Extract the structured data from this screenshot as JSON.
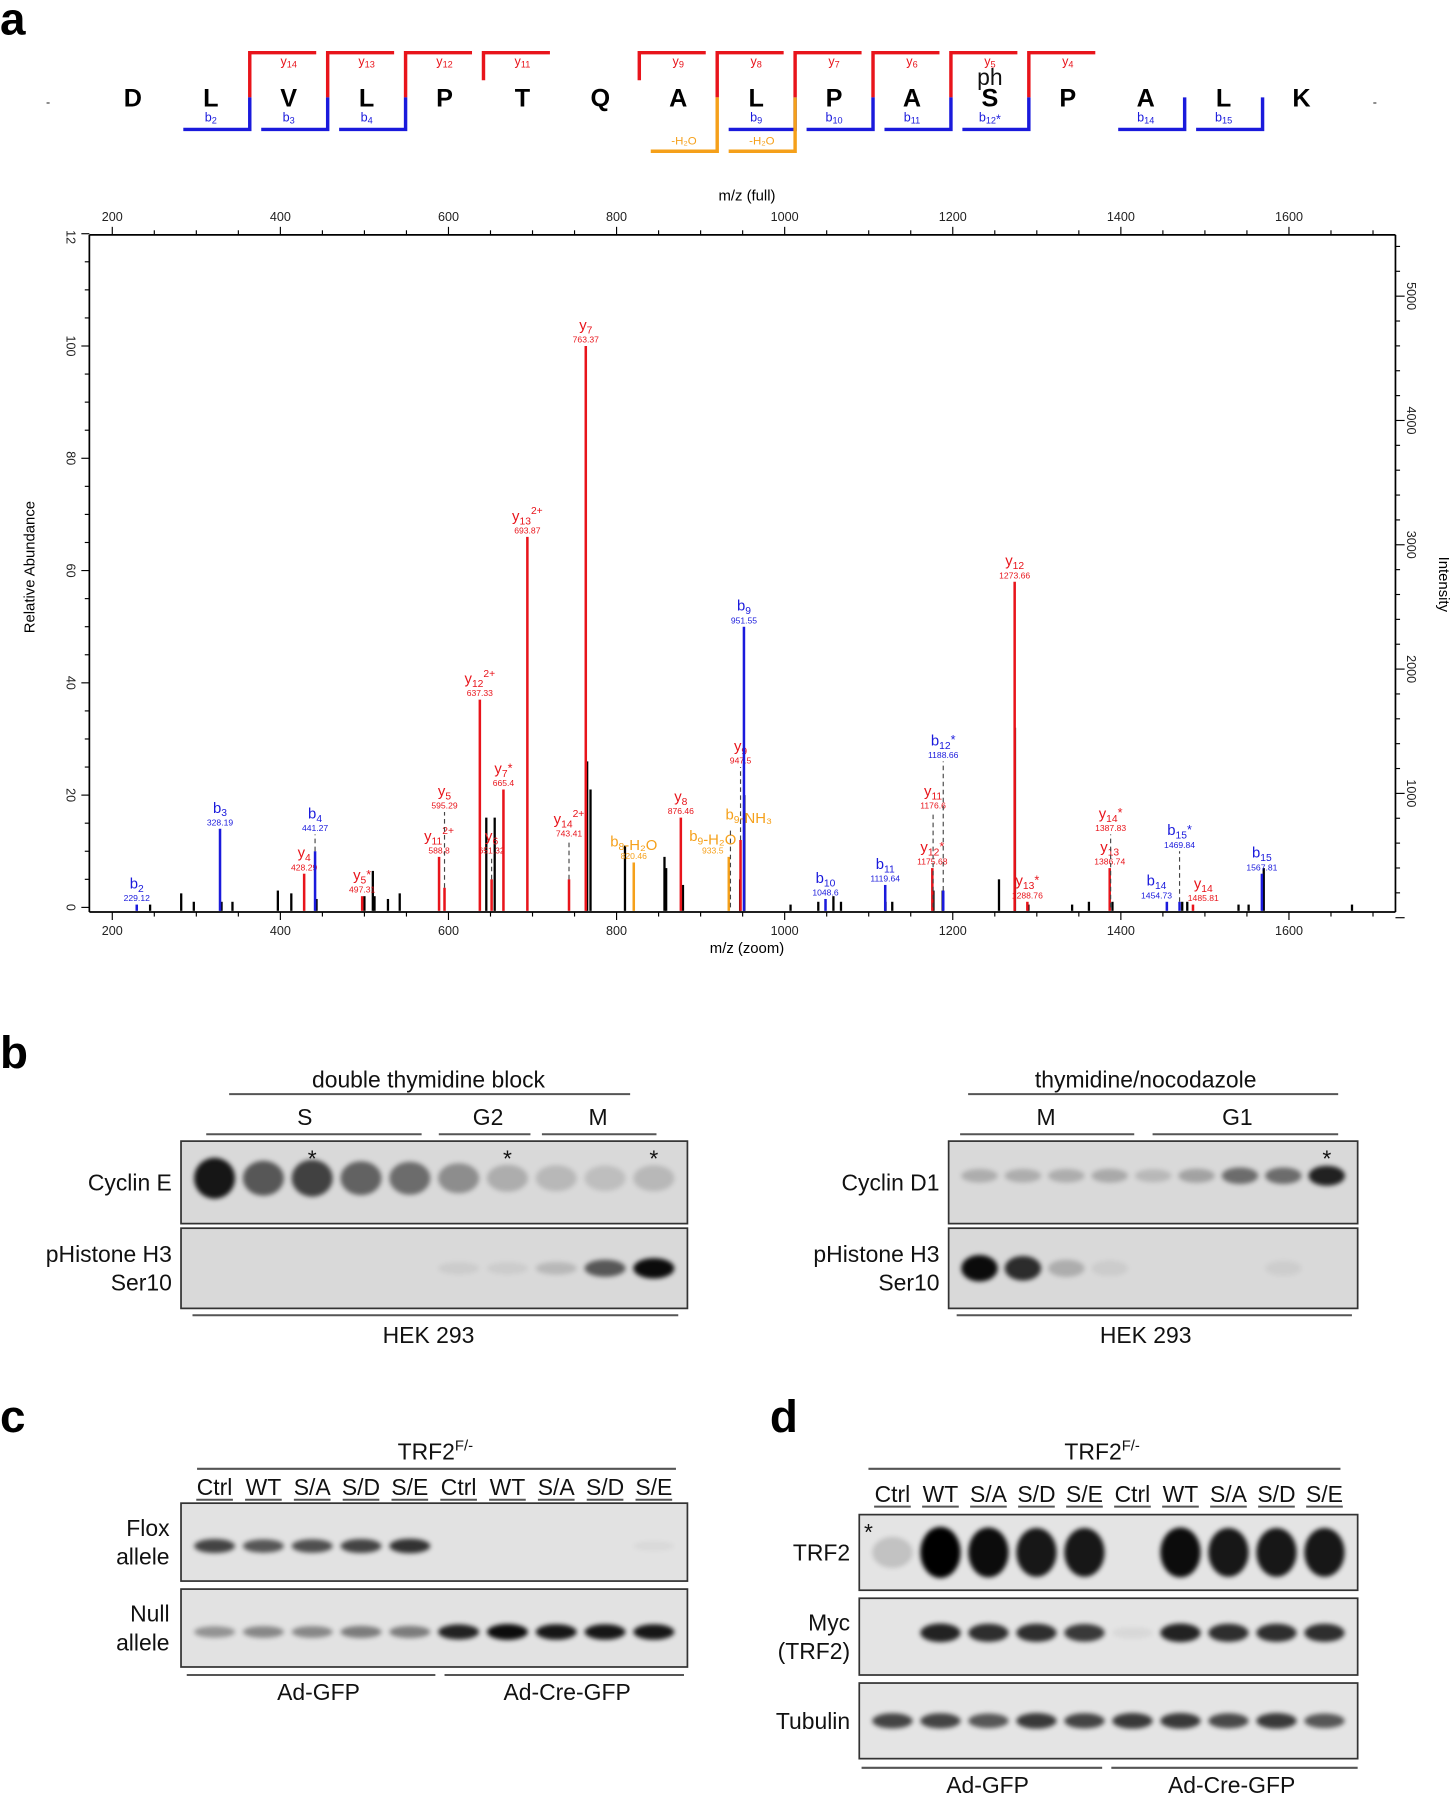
{
  "panels": {
    "a": "a",
    "b": "b",
    "c": "c",
    "d": "d"
  },
  "colors": {
    "y": "#e8141b",
    "b": "#1a1adc",
    "loss": "#f5a01a",
    "other": "#000000"
  },
  "sequence": {
    "residues": [
      "D",
      "L",
      "V",
      "L",
      "P",
      "T",
      "Q",
      "A",
      "L",
      "P",
      "A",
      "S",
      "P",
      "A",
      "L",
      "K"
    ],
    "terminal_marks": [
      "-",
      "-"
    ],
    "modification": {
      "residue_index": 11,
      "label": "ph"
    },
    "y_ions": [
      {
        "ion": "y",
        "n": "14",
        "after": 1
      },
      {
        "ion": "y",
        "n": "13",
        "after": 2
      },
      {
        "ion": "y",
        "n": "12",
        "after": 3
      },
      {
        "ion": "y",
        "n": "11",
        "after": 4
      },
      {
        "ion": "y",
        "n": "9",
        "after": 6
      },
      {
        "ion": "y",
        "n": "8",
        "after": 7
      },
      {
        "ion": "y",
        "n": "7",
        "after": 8
      },
      {
        "ion": "y",
        "n": "6",
        "after": 9
      },
      {
        "ion": "y",
        "n": "5",
        "after": 10
      },
      {
        "ion": "y",
        "n": "4",
        "after": 11
      }
    ],
    "b_ions": [
      {
        "ion": "b",
        "n": "2",
        "star": "",
        "after": 1
      },
      {
        "ion": "b",
        "n": "3",
        "star": "",
        "after": 2
      },
      {
        "ion": "b",
        "n": "4",
        "star": "",
        "after": 3
      },
      {
        "ion": "b",
        "n": "9",
        "star": "",
        "after": 8
      },
      {
        "ion": "b",
        "n": "10",
        "star": "",
        "after": 9
      },
      {
        "ion": "b",
        "n": "11",
        "star": "",
        "after": 10
      },
      {
        "ion": "b",
        "n": "12",
        "star": "*",
        "after": 11
      },
      {
        "ion": "b",
        "n": "14",
        "star": "",
        "after": 13
      },
      {
        "ion": "b",
        "n": "15",
        "star": "",
        "after": 14
      }
    ],
    "water_loss": [
      {
        "label": "-H₂O",
        "after": 7
      },
      {
        "label": "-H₂O",
        "after": 8
      }
    ]
  },
  "chart_data": {
    "type": "bar",
    "title": "",
    "xlabel": "m/z (zoom)",
    "xlabel_top": "m/z (full)",
    "ylabel": "Relative Abundance",
    "ylabel_right": "Intensity",
    "xlim": [
      172,
      1728
    ],
    "ylim": [
      0,
      120
    ],
    "x_ticks": [
      200,
      400,
      600,
      800,
      1000,
      1200,
      1400,
      1600
    ],
    "y_ticks": [
      0,
      20,
      40,
      60,
      80,
      100,
      "12"
    ],
    "y_right_ticks": [
      1000,
      2000,
      3000,
      4000,
      5000
    ],
    "labeled_peaks": [
      {
        "ion": "b",
        "n": "2",
        "sup": "",
        "star": "",
        "mz": "229.12",
        "x": 229.12,
        "rel": 0.5,
        "dash": 0,
        "type": "b"
      },
      {
        "ion": "b",
        "n": "3",
        "sup": "",
        "star": "",
        "mz": "328.19",
        "x": 328.19,
        "rel": 14,
        "dash": 0,
        "type": "b"
      },
      {
        "ion": "y",
        "n": "4",
        "sup": "",
        "star": "",
        "mz": "428.29",
        "x": 428.29,
        "rel": 6,
        "dash": 0,
        "type": "y"
      },
      {
        "ion": "b",
        "n": "4",
        "sup": "",
        "star": "",
        "mz": "441.27",
        "x": 441.27,
        "rel": 10,
        "dash": 13,
        "type": "b"
      },
      {
        "ion": "y",
        "n": "5",
        "sup": "",
        "star": "*",
        "mz": "497.31",
        "x": 497.31,
        "rel": 2,
        "dash": 0,
        "type": "y"
      },
      {
        "ion": "y",
        "n": "11",
        "sup": "2+",
        "star": "",
        "mz": "588.8",
        "x": 588.8,
        "rel": 9,
        "dash": 0,
        "type": "y"
      },
      {
        "ion": "y",
        "n": "5",
        "sup": "",
        "star": "",
        "mz": "595.29",
        "x": 595.29,
        "rel": 3.5,
        "dash": 17,
        "type": "y"
      },
      {
        "ion": "y",
        "n": "12",
        "sup": "2+",
        "star": "",
        "mz": "637.33",
        "x": 637.33,
        "rel": 37,
        "dash": 0,
        "type": "y"
      },
      {
        "ion": "y",
        "n": "6",
        "sup": "",
        "star": "",
        "mz": "651.32",
        "x": 651.32,
        "rel": 5,
        "dash": 9,
        "type": "y"
      },
      {
        "ion": "y",
        "n": "7",
        "sup": "",
        "star": "*",
        "mz": "665.4",
        "x": 665.4,
        "rel": 21,
        "dash": 0,
        "type": "y"
      },
      {
        "ion": "y",
        "n": "13",
        "sup": "2+",
        "star": "",
        "mz": "693.87",
        "x": 693.87,
        "rel": 66,
        "dash": 0,
        "type": "y"
      },
      {
        "ion": "y",
        "n": "14",
        "sup": "2+",
        "star": "",
        "mz": "743.41",
        "x": 743.41,
        "rel": 5,
        "dash": 12,
        "type": "y"
      },
      {
        "ion": "y",
        "n": "7",
        "sup": "",
        "star": "",
        "mz": "763.37",
        "x": 763.37,
        "rel": 100,
        "dash": 0,
        "type": "y"
      },
      {
        "ion": "b",
        "n": "8",
        "sup": "",
        "star": "",
        "suffix": "-H₂O",
        "mz": "820.46",
        "x": 820.46,
        "rel": 8,
        "dash": 0,
        "type": "loss"
      },
      {
        "ion": "y",
        "n": "8",
        "sup": "",
        "star": "",
        "mz": "876.46",
        "x": 876.46,
        "rel": 16,
        "dash": 0,
        "type": "y"
      },
      {
        "ion": "b",
        "n": "9",
        "sup": "",
        "star": "",
        "suffix": "-H₂O",
        "mz": "933.5",
        "x": 933.5,
        "rel": 9,
        "dash": 0,
        "type": "loss"
      },
      {
        "ion": "b",
        "n": "9",
        "sup": "",
        "star": "",
        "suffix": "-NH₃",
        "mz": "",
        "x": 935.5,
        "rel": 0,
        "dash": 14,
        "type": "loss"
      },
      {
        "ion": "y",
        "n": "9",
        "sup": "",
        "star": "",
        "mz": "947.5",
        "x": 947.5,
        "rel": 12,
        "dash": 25,
        "type": "y"
      },
      {
        "ion": "b",
        "n": "9",
        "sup": "",
        "star": "",
        "mz": "951.55",
        "x": 951.55,
        "rel": 50,
        "dash": 0,
        "type": "b"
      },
      {
        "ion": "b",
        "n": "10",
        "sup": "",
        "star": "",
        "mz": "1048.6",
        "x": 1048.6,
        "rel": 1.5,
        "dash": 0,
        "type": "b"
      },
      {
        "ion": "b",
        "n": "11",
        "sup": "",
        "star": "",
        "mz": "1119.64",
        "x": 1119.64,
        "rel": 4,
        "dash": 0,
        "type": "b"
      },
      {
        "ion": "y",
        "n": "12",
        "sup": "",
        "star": "*",
        "mz": "1175.68",
        "x": 1175.68,
        "rel": 7,
        "dash": 0,
        "type": "y"
      },
      {
        "ion": "y",
        "n": "11",
        "sup": "",
        "star": "",
        "mz": "1176.6",
        "x": 1176.6,
        "rel": 0,
        "dash": 17,
        "type": "y"
      },
      {
        "ion": "b",
        "n": "12",
        "sup": "",
        "star": "*",
        "mz": "1188.66",
        "x": 1188.66,
        "rel": 3,
        "dash": 26,
        "type": "b"
      },
      {
        "ion": "y",
        "n": "12",
        "sup": "",
        "star": "",
        "mz": "1273.66",
        "x": 1273.66,
        "rel": 58,
        "dash": 0,
        "type": "y"
      },
      {
        "ion": "y",
        "n": "13",
        "sup": "",
        "star": "*",
        "mz": "1288.76",
        "x": 1288.76,
        "rel": 1,
        "dash": 0,
        "type": "y"
      },
      {
        "ion": "y",
        "n": "13",
        "sup": "",
        "star": "",
        "mz": "1386.74",
        "x": 1386.74,
        "rel": 7,
        "dash": 0,
        "type": "y"
      },
      {
        "ion": "y",
        "n": "14",
        "sup": "",
        "star": "*",
        "mz": "1387.83",
        "x": 1387.83,
        "rel": 0,
        "dash": 13,
        "type": "y"
      },
      {
        "ion": "b",
        "n": "14",
        "sup": "",
        "star": "",
        "mz": "1454.73",
        "x": 1454.73,
        "rel": 1,
        "dash": 0,
        "type": "b"
      },
      {
        "ion": "b",
        "n": "15",
        "sup": "",
        "star": "*",
        "mz": "1469.84",
        "x": 1469.84,
        "rel": 1,
        "dash": 10,
        "type": "b"
      },
      {
        "ion": "y",
        "n": "14",
        "sup": "",
        "star": "",
        "mz": "1485.81",
        "x": 1485.81,
        "rel": 0.5,
        "dash": 0,
        "type": "y"
      },
      {
        "ion": "b",
        "n": "15",
        "sup": "",
        "star": "",
        "mz": "1567.81",
        "x": 1567.81,
        "rel": 6,
        "dash": 0,
        "type": "b"
      }
    ],
    "unlabeled_peaks": [
      [
        245,
        0.5
      ],
      [
        282,
        2.5
      ],
      [
        297,
        1
      ],
      [
        330,
        1
      ],
      [
        343,
        1
      ],
      [
        397,
        3
      ],
      [
        413,
        2.5
      ],
      [
        443,
        1.5
      ],
      [
        500,
        2
      ],
      [
        510,
        6.5
      ],
      [
        512,
        2
      ],
      [
        528,
        1.5
      ],
      [
        542,
        2.5
      ],
      [
        645,
        16
      ],
      [
        655,
        16
      ],
      [
        765,
        26
      ],
      [
        769,
        21
      ],
      [
        810,
        11
      ],
      [
        857,
        9
      ],
      [
        859,
        7
      ],
      [
        879,
        4
      ],
      [
        947,
        5
      ],
      [
        952,
        20
      ],
      [
        1007,
        0.5
      ],
      [
        1040,
        1
      ],
      [
        1058,
        2
      ],
      [
        1067,
        1
      ],
      [
        1120,
        1
      ],
      [
        1128,
        1
      ],
      [
        1177,
        3
      ],
      [
        1188,
        3
      ],
      [
        1255,
        5
      ],
      [
        1274,
        32
      ],
      [
        1290,
        0.5
      ],
      [
        1342,
        0.5
      ],
      [
        1362,
        1
      ],
      [
        1390,
        1
      ],
      [
        1473,
        1
      ],
      [
        1479,
        1
      ],
      [
        1540,
        0.5
      ],
      [
        1552,
        0.5
      ],
      [
        1570,
        7
      ],
      [
        1675,
        0.5
      ]
    ]
  },
  "panel_b": {
    "left": {
      "treatment": "double thymidine block",
      "phases": [
        "S",
        "G2",
        "M"
      ],
      "cell_line": "HEK 293",
      "rows": [
        {
          "label": [
            "Cyclin E"
          ],
          "bands": [
            0.9,
            0.6,
            0.7,
            0.55,
            0.5,
            0.35,
            0.2,
            0.15,
            0.12,
            0.15
          ],
          "asterisks": [
            2,
            6,
            9
          ]
        },
        {
          "label": [
            "pHistone H3",
            "Ser10"
          ],
          "bands": [
            0,
            0,
            0,
            0,
            0,
            0.06,
            0.06,
            0.15,
            0.6,
            0.95
          ],
          "asterisks": []
        }
      ],
      "asterisk": "*"
    },
    "right": {
      "treatment": "thymidine/nocodazole",
      "phases": [
        "M",
        "G1"
      ],
      "cell_line": "HEK 293",
      "rows": [
        {
          "label": [
            "Cyclin D1"
          ],
          "bands": [
            0.2,
            0.2,
            0.2,
            0.22,
            0.15,
            0.25,
            0.5,
            0.5,
            0.85
          ],
          "asterisks": [
            8
          ]
        },
        {
          "label": [
            "pHistone H3",
            "Ser10"
          ],
          "bands": [
            0.95,
            0.8,
            0.2,
            0.06,
            0,
            0,
            0,
            0.05,
            0
          ],
          "asterisks": []
        }
      ],
      "asterisk": "*"
    }
  },
  "panel_c": {
    "genotype": "TRF2",
    "genotype_sup": "F/-",
    "lanes": [
      "Ctrl",
      "WT",
      "S/A",
      "S/D",
      "S/E",
      "Ctrl",
      "WT",
      "S/A",
      "S/D",
      "S/E"
    ],
    "rows": [
      {
        "label": [
          "Flox",
          "allele"
        ],
        "bands": [
          0.7,
          0.62,
          0.65,
          0.7,
          0.78,
          0,
          0,
          0,
          0,
          0.04
        ]
      },
      {
        "label": [
          "Null",
          "allele"
        ],
        "bands": [
          0.35,
          0.4,
          0.4,
          0.45,
          0.45,
          0.85,
          0.95,
          0.9,
          0.9,
          0.9
        ]
      }
    ],
    "groups": [
      "Ad-GFP",
      "Ad-Cre-GFP"
    ]
  },
  "panel_d": {
    "genotype": "TRF2",
    "genotype_sup": "F/-",
    "lanes": [
      "Ctrl",
      "WT",
      "S/A",
      "S/D",
      "S/E",
      "Ctrl",
      "WT",
      "S/A",
      "S/D",
      "S/E"
    ],
    "rows": [
      {
        "label": [
          "TRF2"
        ],
        "bands": [
          0.15,
          1,
          0.95,
          0.9,
          0.9,
          0,
          0.95,
          0.9,
          0.9,
          0.9
        ],
        "asterisk": "*"
      },
      {
        "label": [
          "Myc",
          "(TRF2)"
        ],
        "bands": [
          0,
          0.85,
          0.8,
          0.8,
          0.75,
          0.05,
          0.85,
          0.8,
          0.8,
          0.8
        ]
      },
      {
        "label": [
          "Tubulin"
        ],
        "bands": [
          0.7,
          0.7,
          0.62,
          0.75,
          0.7,
          0.75,
          0.75,
          0.68,
          0.75,
          0.62
        ]
      }
    ],
    "groups": [
      "Ad-GFP",
      "Ad-Cre-GFP"
    ]
  }
}
